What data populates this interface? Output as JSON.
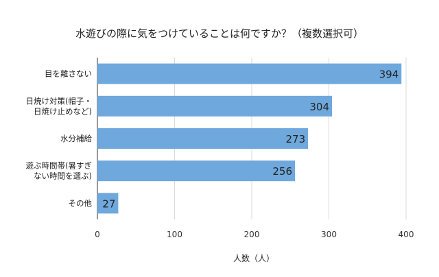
{
  "chart_data": {
    "type": "bar",
    "orientation": "horizontal",
    "title": "水遊びの際に気をつけていることは何ですか？（複数選択可）",
    "xlabel": "人数（人）",
    "ylabel": "",
    "categories": [
      [
        "目を離さない"
      ],
      [
        "日焼け対策(帽子・",
        "日焼け止めなど)"
      ],
      [
        "水分補給"
      ],
      [
        "遊ぶ時間帯(暑すぎ",
        "ない時間を選ぶ)"
      ],
      [
        "その他"
      ]
    ],
    "values": [
      394,
      304,
      273,
      256,
      27
    ],
    "xlim": [
      0,
      400
    ],
    "xticks": [
      0,
      100,
      200,
      300,
      400
    ],
    "grid": true,
    "bar_color": "#6fa8dc",
    "grid_color": "#d9d9d9"
  }
}
